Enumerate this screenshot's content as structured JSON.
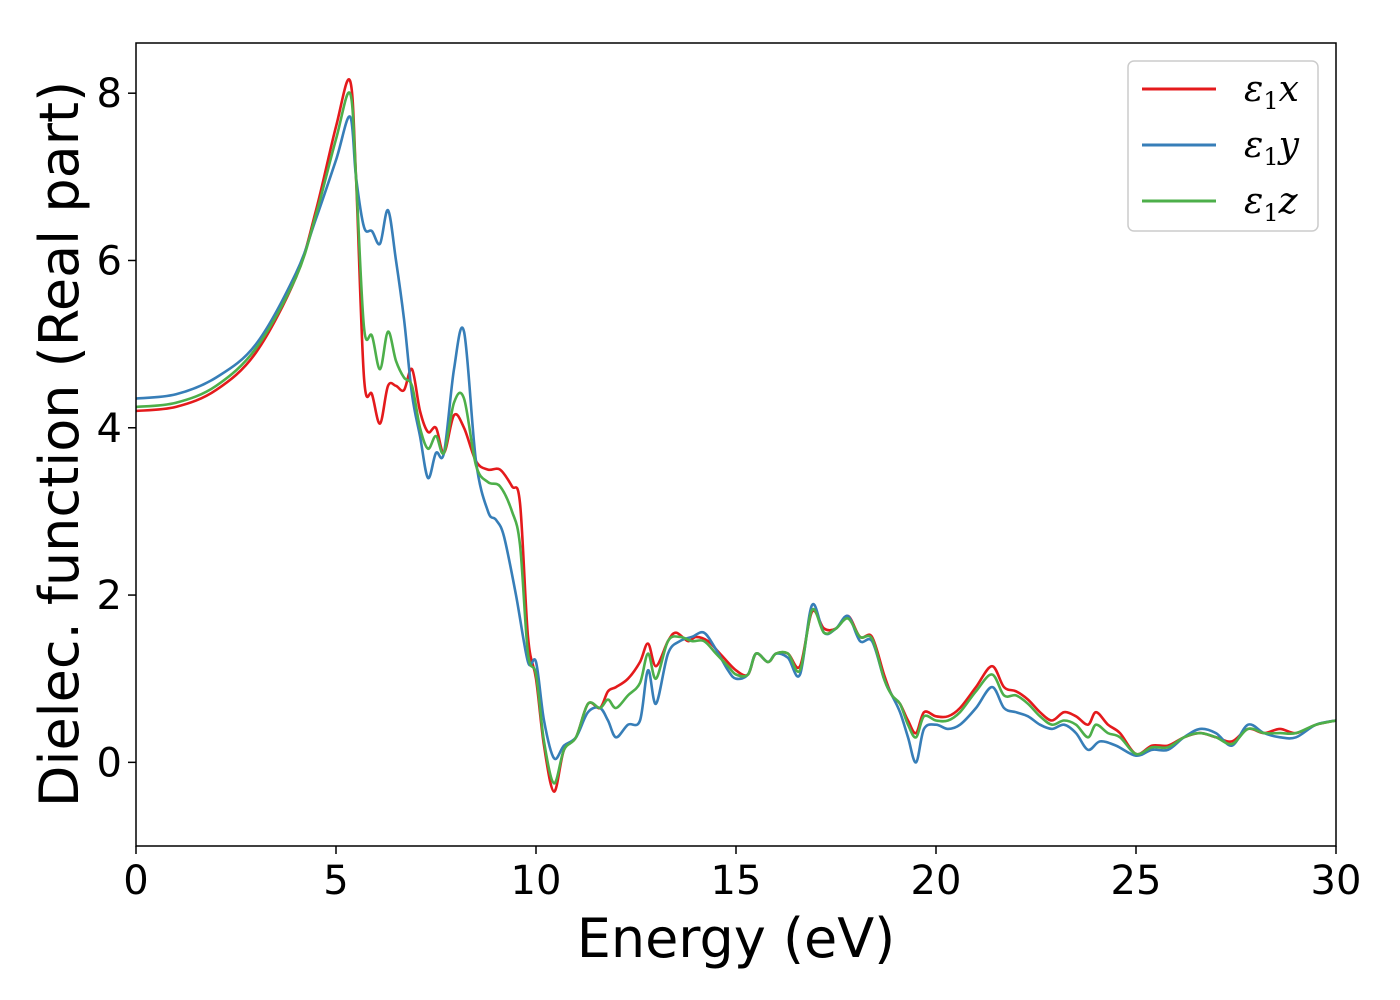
{
  "chart_data": {
    "type": "line",
    "xlabel": "Energy (eV)",
    "ylabel": "Dielec. function (Real part)",
    "xlim": [
      0,
      30
    ],
    "ylim": [
      -1,
      8.6
    ],
    "xticks": [
      0,
      5,
      10,
      15,
      20,
      25,
      30
    ],
    "yticks": [
      0,
      2,
      4,
      6,
      8
    ],
    "xtick_labels": [
      "0",
      "5",
      "10",
      "15",
      "20",
      "25",
      "30"
    ],
    "ytick_labels": [
      "0",
      "2",
      "4",
      "6",
      "8"
    ],
    "grid": false,
    "legend_position": "top-right",
    "series": [
      {
        "name": "ε1x",
        "legend_symbol": "ε",
        "legend_sub": "1",
        "legend_var": "x",
        "color": "#e41a1c",
        "points": [
          [
            0,
            4.2
          ],
          [
            1,
            4.25
          ],
          [
            2,
            4.45
          ],
          [
            3,
            4.9
          ],
          [
            4,
            5.8
          ],
          [
            4.5,
            6.6
          ],
          [
            5,
            7.6
          ],
          [
            5.35,
            8.15
          ],
          [
            5.5,
            7.0
          ],
          [
            5.7,
            4.6
          ],
          [
            5.9,
            4.4
          ],
          [
            6.1,
            4.05
          ],
          [
            6.3,
            4.5
          ],
          [
            6.5,
            4.5
          ],
          [
            6.7,
            4.45
          ],
          [
            6.9,
            4.7
          ],
          [
            7.1,
            4.2
          ],
          [
            7.3,
            3.95
          ],
          [
            7.5,
            4.0
          ],
          [
            7.7,
            3.7
          ],
          [
            7.95,
            4.15
          ],
          [
            8.2,
            4.0
          ],
          [
            8.5,
            3.6
          ],
          [
            8.8,
            3.5
          ],
          [
            9.1,
            3.5
          ],
          [
            9.4,
            3.3
          ],
          [
            9.6,
            3.1
          ],
          [
            9.8,
            1.5
          ],
          [
            10.0,
            1.0
          ],
          [
            10.2,
            0.2
          ],
          [
            10.45,
            -0.35
          ],
          [
            10.7,
            0.15
          ],
          [
            11.0,
            0.3
          ],
          [
            11.3,
            0.7
          ],
          [
            11.6,
            0.65
          ],
          [
            11.8,
            0.85
          ],
          [
            12.0,
            0.9
          ],
          [
            12.3,
            1.0
          ],
          [
            12.6,
            1.2
          ],
          [
            12.8,
            1.42
          ],
          [
            13.0,
            1.15
          ],
          [
            13.3,
            1.45
          ],
          [
            13.5,
            1.55
          ],
          [
            13.8,
            1.45
          ],
          [
            14.0,
            1.5
          ],
          [
            14.3,
            1.45
          ],
          [
            14.6,
            1.3
          ],
          [
            15.0,
            1.1
          ],
          [
            15.3,
            1.05
          ],
          [
            15.5,
            1.3
          ],
          [
            15.8,
            1.2
          ],
          [
            16.0,
            1.3
          ],
          [
            16.3,
            1.3
          ],
          [
            16.6,
            1.15
          ],
          [
            16.9,
            1.8
          ],
          [
            17.2,
            1.6
          ],
          [
            17.5,
            1.6
          ],
          [
            17.8,
            1.75
          ],
          [
            18.1,
            1.5
          ],
          [
            18.4,
            1.5
          ],
          [
            18.7,
            1.05
          ],
          [
            18.9,
            0.8
          ],
          [
            19.1,
            0.7
          ],
          [
            19.3,
            0.5
          ],
          [
            19.5,
            0.35
          ],
          [
            19.7,
            0.6
          ],
          [
            20.0,
            0.55
          ],
          [
            20.3,
            0.55
          ],
          [
            20.6,
            0.65
          ],
          [
            21.0,
            0.9
          ],
          [
            21.4,
            1.15
          ],
          [
            21.7,
            0.9
          ],
          [
            22.0,
            0.85
          ],
          [
            22.3,
            0.75
          ],
          [
            22.6,
            0.6
          ],
          [
            22.9,
            0.5
          ],
          [
            23.2,
            0.6
          ],
          [
            23.5,
            0.55
          ],
          [
            23.8,
            0.45
          ],
          [
            24.0,
            0.6
          ],
          [
            24.3,
            0.45
          ],
          [
            24.6,
            0.35
          ],
          [
            25.0,
            0.1
          ],
          [
            25.4,
            0.2
          ],
          [
            25.8,
            0.2
          ],
          [
            26.2,
            0.3
          ],
          [
            26.6,
            0.35
          ],
          [
            27.0,
            0.3
          ],
          [
            27.4,
            0.25
          ],
          [
            27.8,
            0.4
          ],
          [
            28.2,
            0.35
          ],
          [
            28.6,
            0.4
          ],
          [
            29.0,
            0.35
          ],
          [
            29.5,
            0.45
          ],
          [
            30,
            0.5
          ]
        ]
      },
      {
        "name": "ε1y",
        "legend_symbol": "ε",
        "legend_sub": "1",
        "legend_var": "y",
        "color": "#377eb8",
        "points": [
          [
            0,
            4.35
          ],
          [
            1,
            4.4
          ],
          [
            2,
            4.6
          ],
          [
            3,
            5.0
          ],
          [
            4,
            5.85
          ],
          [
            4.5,
            6.5
          ],
          [
            5,
            7.2
          ],
          [
            5.35,
            7.72
          ],
          [
            5.5,
            7.0
          ],
          [
            5.7,
            6.4
          ],
          [
            5.9,
            6.35
          ],
          [
            6.1,
            6.2
          ],
          [
            6.3,
            6.6
          ],
          [
            6.5,
            6.0
          ],
          [
            6.7,
            5.3
          ],
          [
            6.9,
            4.4
          ],
          [
            7.1,
            3.9
          ],
          [
            7.3,
            3.4
          ],
          [
            7.5,
            3.7
          ],
          [
            7.7,
            3.7
          ],
          [
            7.95,
            4.7
          ],
          [
            8.2,
            5.15
          ],
          [
            8.5,
            3.6
          ],
          [
            8.8,
            3.0
          ],
          [
            9.0,
            2.9
          ],
          [
            9.2,
            2.7
          ],
          [
            9.5,
            2.0
          ],
          [
            9.8,
            1.2
          ],
          [
            10.0,
            1.2
          ],
          [
            10.2,
            0.5
          ],
          [
            10.45,
            0.05
          ],
          [
            10.7,
            0.2
          ],
          [
            11.0,
            0.3
          ],
          [
            11.3,
            0.6
          ],
          [
            11.6,
            0.65
          ],
          [
            11.8,
            0.5
          ],
          [
            12.0,
            0.3
          ],
          [
            12.3,
            0.45
          ],
          [
            12.6,
            0.5
          ],
          [
            12.8,
            1.1
          ],
          [
            13.0,
            0.7
          ],
          [
            13.3,
            1.3
          ],
          [
            13.6,
            1.45
          ],
          [
            13.9,
            1.5
          ],
          [
            14.2,
            1.55
          ],
          [
            14.5,
            1.35
          ],
          [
            14.8,
            1.1
          ],
          [
            15.0,
            1.0
          ],
          [
            15.3,
            1.05
          ],
          [
            15.5,
            1.3
          ],
          [
            15.8,
            1.2
          ],
          [
            16.0,
            1.3
          ],
          [
            16.3,
            1.25
          ],
          [
            16.6,
            1.05
          ],
          [
            16.9,
            1.88
          ],
          [
            17.2,
            1.55
          ],
          [
            17.5,
            1.6
          ],
          [
            17.8,
            1.75
          ],
          [
            18.1,
            1.45
          ],
          [
            18.4,
            1.45
          ],
          [
            18.7,
            1.0
          ],
          [
            18.9,
            0.8
          ],
          [
            19.1,
            0.6
          ],
          [
            19.3,
            0.3
          ],
          [
            19.5,
            0.0
          ],
          [
            19.7,
            0.4
          ],
          [
            20.0,
            0.45
          ],
          [
            20.3,
            0.4
          ],
          [
            20.6,
            0.45
          ],
          [
            21.0,
            0.65
          ],
          [
            21.4,
            0.9
          ],
          [
            21.7,
            0.65
          ],
          [
            22.0,
            0.6
          ],
          [
            22.3,
            0.55
          ],
          [
            22.6,
            0.45
          ],
          [
            22.9,
            0.4
          ],
          [
            23.2,
            0.45
          ],
          [
            23.5,
            0.35
          ],
          [
            23.8,
            0.15
          ],
          [
            24.1,
            0.25
          ],
          [
            24.5,
            0.2
          ],
          [
            25.0,
            0.08
          ],
          [
            25.4,
            0.15
          ],
          [
            25.8,
            0.15
          ],
          [
            26.2,
            0.3
          ],
          [
            26.6,
            0.4
          ],
          [
            27.0,
            0.35
          ],
          [
            27.4,
            0.2
          ],
          [
            27.8,
            0.45
          ],
          [
            28.2,
            0.35
          ],
          [
            28.6,
            0.3
          ],
          [
            29.0,
            0.3
          ],
          [
            29.5,
            0.45
          ],
          [
            30,
            0.5
          ]
        ]
      },
      {
        "name": "ε1z",
        "legend_symbol": "ε",
        "legend_sub": "1",
        "legend_var": "z",
        "color": "#4daf4a",
        "points": [
          [
            0,
            4.25
          ],
          [
            1,
            4.3
          ],
          [
            2,
            4.5
          ],
          [
            3,
            4.95
          ],
          [
            4,
            5.8
          ],
          [
            4.5,
            6.55
          ],
          [
            5,
            7.45
          ],
          [
            5.35,
            8.0
          ],
          [
            5.5,
            7.0
          ],
          [
            5.7,
            5.2
          ],
          [
            5.9,
            5.1
          ],
          [
            6.1,
            4.7
          ],
          [
            6.3,
            5.15
          ],
          [
            6.5,
            4.8
          ],
          [
            6.7,
            4.6
          ],
          [
            6.9,
            4.5
          ],
          [
            7.1,
            4.0
          ],
          [
            7.3,
            3.75
          ],
          [
            7.5,
            3.9
          ],
          [
            7.7,
            3.7
          ],
          [
            7.95,
            4.3
          ],
          [
            8.2,
            4.35
          ],
          [
            8.5,
            3.55
          ],
          [
            8.8,
            3.35
          ],
          [
            9.1,
            3.3
          ],
          [
            9.4,
            3.0
          ],
          [
            9.6,
            2.6
          ],
          [
            9.8,
            1.3
          ],
          [
            10.0,
            1.05
          ],
          [
            10.2,
            0.25
          ],
          [
            10.45,
            -0.25
          ],
          [
            10.7,
            0.15
          ],
          [
            11.0,
            0.3
          ],
          [
            11.3,
            0.7
          ],
          [
            11.6,
            0.65
          ],
          [
            11.8,
            0.75
          ],
          [
            12.0,
            0.65
          ],
          [
            12.3,
            0.8
          ],
          [
            12.6,
            0.95
          ],
          [
            12.8,
            1.3
          ],
          [
            13.0,
            1.0
          ],
          [
            13.3,
            1.45
          ],
          [
            13.6,
            1.5
          ],
          [
            13.9,
            1.45
          ],
          [
            14.2,
            1.45
          ],
          [
            14.5,
            1.3
          ],
          [
            14.8,
            1.15
          ],
          [
            15.0,
            1.05
          ],
          [
            15.3,
            1.05
          ],
          [
            15.5,
            1.3
          ],
          [
            15.8,
            1.2
          ],
          [
            16.0,
            1.3
          ],
          [
            16.3,
            1.3
          ],
          [
            16.6,
            1.1
          ],
          [
            16.9,
            1.82
          ],
          [
            17.2,
            1.55
          ],
          [
            17.5,
            1.6
          ],
          [
            17.8,
            1.72
          ],
          [
            18.1,
            1.5
          ],
          [
            18.4,
            1.48
          ],
          [
            18.7,
            1.0
          ],
          [
            18.9,
            0.8
          ],
          [
            19.1,
            0.7
          ],
          [
            19.3,
            0.45
          ],
          [
            19.5,
            0.3
          ],
          [
            19.7,
            0.55
          ],
          [
            20.0,
            0.5
          ],
          [
            20.3,
            0.5
          ],
          [
            20.6,
            0.6
          ],
          [
            21.0,
            0.85
          ],
          [
            21.4,
            1.05
          ],
          [
            21.7,
            0.8
          ],
          [
            22.0,
            0.8
          ],
          [
            22.3,
            0.7
          ],
          [
            22.6,
            0.55
          ],
          [
            22.9,
            0.45
          ],
          [
            23.2,
            0.5
          ],
          [
            23.5,
            0.45
          ],
          [
            23.8,
            0.3
          ],
          [
            24.0,
            0.45
          ],
          [
            24.3,
            0.35
          ],
          [
            24.6,
            0.3
          ],
          [
            25.0,
            0.1
          ],
          [
            25.4,
            0.18
          ],
          [
            25.8,
            0.18
          ],
          [
            26.2,
            0.3
          ],
          [
            26.6,
            0.35
          ],
          [
            27.0,
            0.3
          ],
          [
            27.4,
            0.22
          ],
          [
            27.8,
            0.4
          ],
          [
            28.2,
            0.35
          ],
          [
            28.6,
            0.35
          ],
          [
            29.0,
            0.35
          ],
          [
            29.5,
            0.45
          ],
          [
            30,
            0.5
          ]
        ]
      }
    ]
  }
}
